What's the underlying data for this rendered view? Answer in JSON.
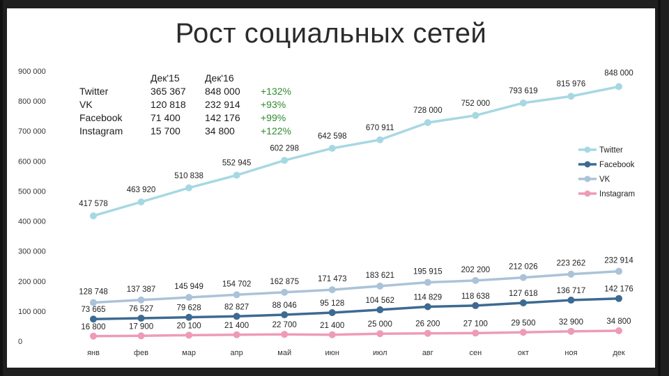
{
  "title": "Рост социальных сетей",
  "summary_table": {
    "headers": [
      "Дек'15",
      "Дек'16"
    ],
    "rows": [
      {
        "name": "Twitter",
        "dec15": "365 367",
        "dec16": "848 000",
        "growth": "+132%"
      },
      {
        "name": "VK",
        "dec15": "120 818",
        "dec16": "232 914",
        "growth": "+93%"
      },
      {
        "name": "Facebook",
        "dec15": "71 400",
        "dec16": "142 176",
        "growth": "+99%"
      },
      {
        "name": "Instagram",
        "dec15": "15 700",
        "dec16": "34 800",
        "growth": "+122%"
      }
    ]
  },
  "chart_data": {
    "type": "line",
    "title": "Рост социальных сетей",
    "categories": [
      "янв",
      "фев",
      "мар",
      "апр",
      "май",
      "июн",
      "июл",
      "авг",
      "сен",
      "окт",
      "ноя",
      "дек"
    ],
    "ylim": [
      0,
      900000
    ],
    "yticks": [
      0,
      100000,
      200000,
      300000,
      400000,
      500000,
      600000,
      700000,
      800000,
      900000
    ],
    "ytick_labels": [
      "0",
      "100 000",
      "200 000",
      "300 000",
      "400 000",
      "500 000",
      "600 000",
      "700 000",
      "800 000",
      "900 000"
    ],
    "grid": false,
    "legend_position": "right",
    "series": [
      {
        "name": "Twitter",
        "color": "#a6d8e3",
        "values": [
          417578,
          463920,
          510838,
          552945,
          602298,
          642598,
          670911,
          728000,
          752000,
          793619,
          815976,
          848000
        ],
        "labels": [
          "417 578",
          "463 920",
          "510 838",
          "552 945",
          "602 298",
          "642 598",
          "670 911",
          "728 000",
          "752 000",
          "793 619",
          "815 976",
          "848 000"
        ]
      },
      {
        "name": "Facebook",
        "color": "#3d6a92",
        "values": [
          73665,
          76527,
          79628,
          82827,
          88046,
          95128,
          104562,
          114829,
          118638,
          127618,
          136717,
          142176
        ],
        "labels": [
          "73 665",
          "76 527",
          "79 628",
          "82 827",
          "88 046",
          "95 128",
          "104 562",
          "114 829",
          "118 638",
          "127 618",
          "136 717",
          "142 176"
        ]
      },
      {
        "name": "VK",
        "color": "#abc3d8",
        "values": [
          128748,
          137387,
          145949,
          154702,
          162875,
          171473,
          183621,
          195915,
          202200,
          212026,
          223262,
          232914
        ],
        "labels": [
          "128 748",
          "137 387",
          "145 949",
          "154 702",
          "162 875",
          "171 473",
          "183 621",
          "195 915",
          "202 200",
          "212 026",
          "223 262",
          "232 914"
        ]
      },
      {
        "name": "Instagram",
        "color": "#ee9bb7",
        "values": [
          16800,
          17900,
          20100,
          21400,
          22700,
          21400,
          25000,
          26200,
          27100,
          29500,
          32900,
          34800
        ],
        "labels": [
          "16 800",
          "17 900",
          "20 100",
          "21 400",
          "22 700",
          "21 400",
          "25 000",
          "26 200",
          "27 100",
          "29 500",
          "32 900",
          "34 800"
        ]
      }
    ]
  }
}
